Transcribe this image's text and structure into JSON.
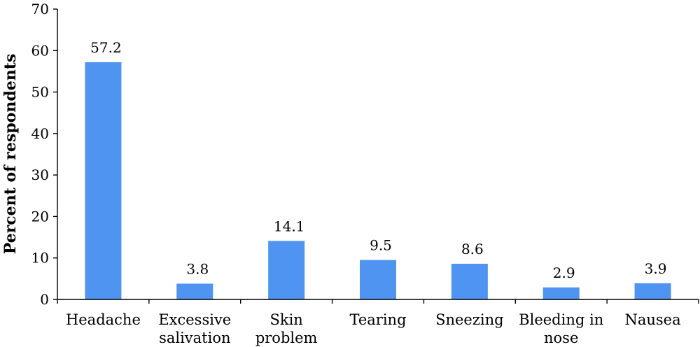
{
  "chart_data": {
    "type": "bar",
    "categories": [
      "Headache",
      "Excessive salivation",
      "Skin problem",
      "Tearing",
      "Sneezing",
      "Bleeding in nose",
      "Nausea"
    ],
    "category_lines": [
      [
        "Headache"
      ],
      [
        "Excessive",
        "salivation"
      ],
      [
        "Skin",
        "problem"
      ],
      [
        "Tearing"
      ],
      [
        "Sneezing"
      ],
      [
        "Bleeding in",
        "nose"
      ],
      [
        "Nausea"
      ]
    ],
    "values": [
      57.2,
      3.8,
      14.1,
      9.5,
      8.6,
      2.9,
      3.9
    ],
    "value_labels": [
      "57.2",
      "3.8",
      "14.1",
      "9.5",
      "8.6",
      "2.9",
      "3.9"
    ],
    "title": "",
    "xlabel": "",
    "ylabel": "Percent of respondents",
    "ylim": [
      0,
      70
    ],
    "yticks": [
      0,
      10,
      20,
      30,
      40,
      50,
      60,
      70
    ],
    "grid": false,
    "legend": "none",
    "bar_color": "#4f94f0"
  }
}
